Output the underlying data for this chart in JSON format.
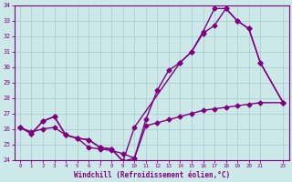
{
  "xlabel": "Windchill (Refroidissement éolien,°C)",
  "bg_color": "#cce8e8",
  "line_color": "#800080",
  "grid_color": "#aacfcf",
  "xlim": [
    -0.5,
    23.5
  ],
  "ylim": [
    24,
    34
  ],
  "yticks": [
    24,
    25,
    26,
    27,
    28,
    29,
    30,
    31,
    32,
    33,
    34
  ],
  "xticks": [
    0,
    1,
    2,
    3,
    4,
    5,
    6,
    7,
    8,
    9,
    10,
    11,
    12,
    13,
    14,
    15,
    16,
    17,
    18,
    19,
    20,
    21,
    23
  ],
  "series1_x": [
    0,
    1,
    2,
    3,
    4,
    5,
    6,
    7,
    8,
    9,
    10,
    11,
    12,
    13,
    14,
    15,
    16,
    17,
    18,
    19,
    20,
    21,
    23
  ],
  "series1_y": [
    26.1,
    25.8,
    26.0,
    26.1,
    25.6,
    25.4,
    24.8,
    24.7,
    24.6,
    24.4,
    24.1,
    26.2,
    26.4,
    26.6,
    26.8,
    27.0,
    27.2,
    27.3,
    27.4,
    27.5,
    27.6,
    27.7,
    27.7
  ],
  "series2_x": [
    0,
    1,
    2,
    3,
    4,
    5,
    6,
    7,
    8,
    9,
    10,
    11,
    12,
    13,
    14,
    15,
    16,
    17,
    18,
    19,
    20,
    21,
    23
  ],
  "series2_y": [
    26.1,
    25.7,
    26.5,
    26.8,
    25.6,
    25.4,
    25.3,
    24.8,
    24.7,
    23.9,
    24.1,
    26.6,
    28.5,
    29.8,
    30.3,
    31.0,
    32.2,
    32.7,
    33.8,
    33.0,
    32.5,
    30.3,
    27.7
  ],
  "series3_x": [
    0,
    1,
    2,
    3,
    4,
    5,
    6,
    7,
    8,
    9,
    10,
    14,
    15,
    16,
    17,
    18,
    19,
    20,
    21,
    23
  ],
  "series3_y": [
    26.1,
    25.7,
    26.5,
    26.8,
    25.6,
    25.4,
    25.3,
    24.8,
    24.7,
    23.9,
    26.1,
    30.3,
    31.0,
    32.3,
    33.8,
    33.8,
    33.0,
    32.5,
    30.3,
    27.7
  ],
  "marker": "D",
  "markersize": 2.5,
  "linewidth": 1.0
}
